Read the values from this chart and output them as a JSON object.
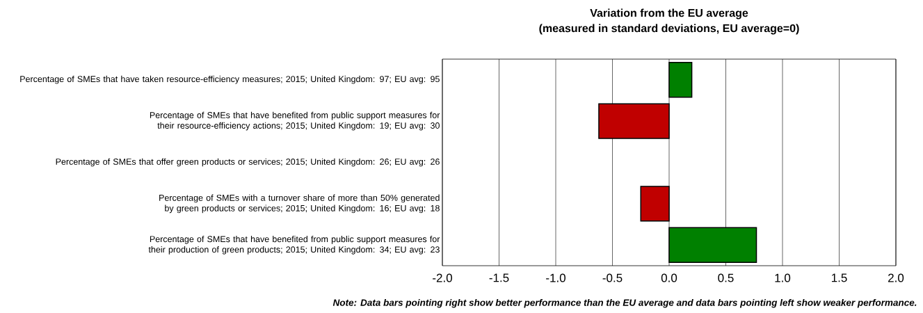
{
  "chart_data": {
    "type": "bar",
    "orientation": "horizontal",
    "title": "Variation from the EU average",
    "subtitle": "(measured in standard deviations, EU average=0)",
    "categories": [
      "Percentage of SMEs that have taken resource-efficiency measures; 2015; United Kingdom: 97; EU avg: 95",
      "Percentage of SMEs that have benefited from public support measures for their resource-efficiency actions; 2015; United Kingdom: 19; EU avg: 30",
      "Percentage of SMEs that offer green products or services; 2015; United Kingdom: 26; EU avg: 26",
      "Percentage of SMEs with a turnover share of more than 50% generated by green products or services; 2015; United Kingdom: 16; EU avg: 18",
      "Percentage of SMEs that have benefited from public support measures for their production of green products; 2015; United Kingdom: 34; EU avg: 23"
    ],
    "values": [
      0.2,
      -0.62,
      0,
      -0.25,
      0.77
    ],
    "colors": [
      "#008000",
      "#c00000",
      "#008000",
      "#c00000",
      "#008000"
    ],
    "xlim": [
      -2,
      2
    ],
    "xticks": [
      {
        "value": -2,
        "label": "-2.0"
      },
      {
        "value": -1.5,
        "label": "-1.5"
      },
      {
        "value": -1,
        "label": "-1.0"
      },
      {
        "value": -0.5,
        "label": "-0.5"
      },
      {
        "value": 0,
        "label": "0.0"
      },
      {
        "value": 0.5,
        "label": "0.5"
      },
      {
        "value": 1,
        "label": "1.0"
      },
      {
        "value": 1.5,
        "label": "1.5"
      },
      {
        "value": 2,
        "label": "2.0"
      }
    ],
    "grid": "x",
    "annotations": [
      "Note: Data bars pointing right show better performance than the EU average and data bars pointing left show weaker performance."
    ]
  }
}
